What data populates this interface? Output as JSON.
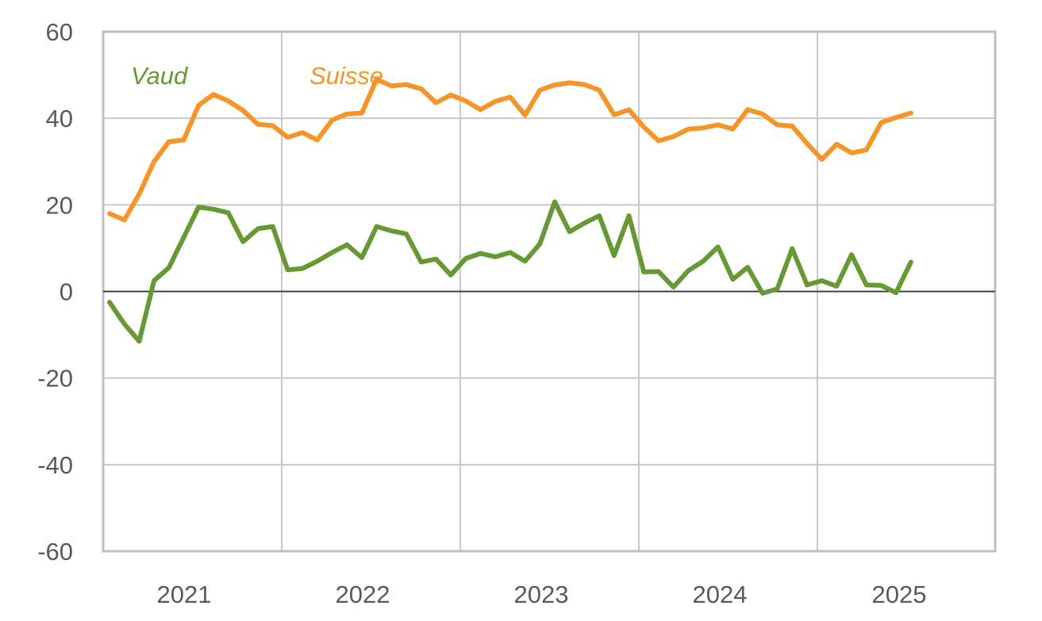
{
  "chart_data": {
    "type": "line",
    "title": "",
    "xlabel": "",
    "ylabel": "",
    "ylim": [
      -60,
      60
    ],
    "yticks": [
      60,
      40,
      20,
      0,
      -20,
      -40,
      -60
    ],
    "year_ticks": [
      "2021",
      "2022",
      "2023",
      "2024",
      "2025"
    ],
    "grid": true,
    "legend": "inline labels, top-left",
    "series": [
      {
        "name": "Vaud",
        "color": "#669933",
        "values": [
          -2.5,
          -7.5,
          -11.5,
          2.5,
          5.5,
          12.5,
          19.5,
          19,
          18.2,
          11.5,
          14.5,
          15,
          5,
          5.3,
          7,
          9,
          10.8,
          7.8,
          15,
          14,
          13.3,
          6.8,
          7.5,
          3.8,
          7.6,
          8.8,
          8,
          9,
          7,
          11,
          20.7,
          13.8,
          15.8,
          17.5,
          8.3,
          17.5,
          4.5,
          4.6,
          1,
          4.8,
          7,
          10.3,
          2.8,
          5.6,
          -0.4,
          0.6,
          9.9,
          1.5,
          2.5,
          1.2,
          8.5,
          1.5,
          1.4,
          -0.3,
          6.8
        ]
      },
      {
        "name": "Suisse",
        "color": "#F79428",
        "values": [
          18,
          16.5,
          22.5,
          30,
          34.6,
          35,
          43,
          45.5,
          44,
          41.8,
          38.6,
          38.3,
          35.6,
          36.7,
          35,
          39.6,
          41,
          41.2,
          49,
          47.5,
          47.8,
          46.8,
          43.6,
          45.4,
          44,
          42,
          43.9,
          44.9,
          40.7,
          46.5,
          47.7,
          48.2,
          47.8,
          46.5,
          40.8,
          42,
          38,
          34.8,
          35.8,
          37.5,
          37.8,
          38.5,
          37.5,
          42,
          41,
          38.5,
          38.2,
          34.2,
          30.5,
          34,
          32,
          32.7,
          39,
          40.2,
          41.2
        ]
      }
    ]
  }
}
